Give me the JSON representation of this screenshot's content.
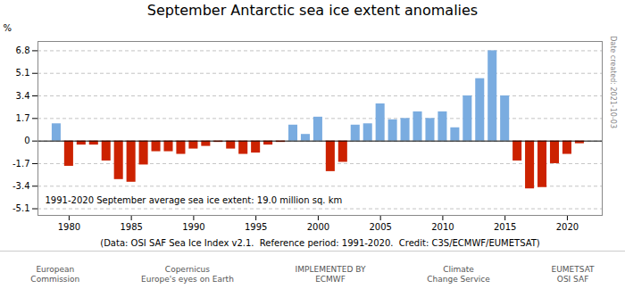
{
  "chart_data": {
    "type": "bar",
    "title": "September Antarctic sea ice extent anomalies",
    "ylabel": "%",
    "xlabel": "(Data: OSI SAF Sea Ice Index v2.1.  Reference period: 1991-2020.  Credit: C3S/ECMWF/EUMETSAT)",
    "annotations": [
      "1991-2020 September average sea ice extent: 19.0 million sq. km",
      "Date created: 2021-10-03",
      "European\nCommission",
      "Copernicus\nEurope's eyes on Earth",
      "IMPLEMENTED BY\nECMWF",
      "Climate\nChange Service",
      "EUMETSAT\nOSI SAF"
    ],
    "x": [
      1979,
      1980,
      1981,
      1982,
      1983,
      1984,
      1985,
      1986,
      1987,
      1988,
      1989,
      1990,
      1991,
      1992,
      1993,
      1994,
      1995,
      1996,
      1997,
      1998,
      1999,
      2000,
      2001,
      2002,
      2003,
      2004,
      2005,
      2006,
      2007,
      2008,
      2009,
      2010,
      2011,
      2012,
      2013,
      2014,
      2015,
      2016,
      2017,
      2018,
      2019,
      2020,
      2021
    ],
    "values": [
      1.3,
      -1.9,
      -0.3,
      -0.3,
      -1.5,
      -2.9,
      -3.1,
      -1.8,
      -0.8,
      -0.8,
      -1.0,
      -0.6,
      -0.4,
      -0.1,
      -0.6,
      -1.0,
      -0.9,
      -0.3,
      -0.1,
      1.2,
      0.5,
      1.8,
      -2.3,
      -1.6,
      1.2,
      1.3,
      2.8,
      1.6,
      1.7,
      2.2,
      1.7,
      2.2,
      1.0,
      3.4,
      4.7,
      6.8,
      3.4,
      -1.5,
      -3.6,
      -3.5,
      -1.7,
      -1.0,
      -0.2
    ],
    "colors": [
      "#7aace0",
      "#cc2200",
      "#cc2200",
      "#cc2200",
      "#cc2200",
      "#cc2200",
      "#cc2200",
      "#cc2200",
      "#cc2200",
      "#cc2200",
      "#cc2200",
      "#cc2200",
      "#cc2200",
      "#cc2200",
      "#cc2200",
      "#cc2200",
      "#cc2200",
      "#cc2200",
      "#cc2200",
      "#7aace0",
      "#7aace0",
      "#7aace0",
      "#cc2200",
      "#cc2200",
      "#7aace0",
      "#7aace0",
      "#7aace0",
      "#7aace0",
      "#7aace0",
      "#7aace0",
      "#7aace0",
      "#7aace0",
      "#7aace0",
      "#7aace0",
      "#7aace0",
      "#7aace0",
      "#7aace0",
      "#cc2200",
      "#cc2200",
      "#cc2200",
      "#cc2200",
      "#cc2200",
      "#cc2200"
    ],
    "ylim": [
      -5.6,
      7.5
    ],
    "yticks": [
      -5.1,
      -3.4,
      -1.7,
      0,
      1.7,
      3.4,
      5.1,
      6.8
    ],
    "xlim": [
      1977.5,
      2022.8
    ],
    "xticks": [
      1980,
      1985,
      1990,
      1995,
      2000,
      2005,
      2010,
      2015,
      2020
    ],
    "grid": true
  }
}
